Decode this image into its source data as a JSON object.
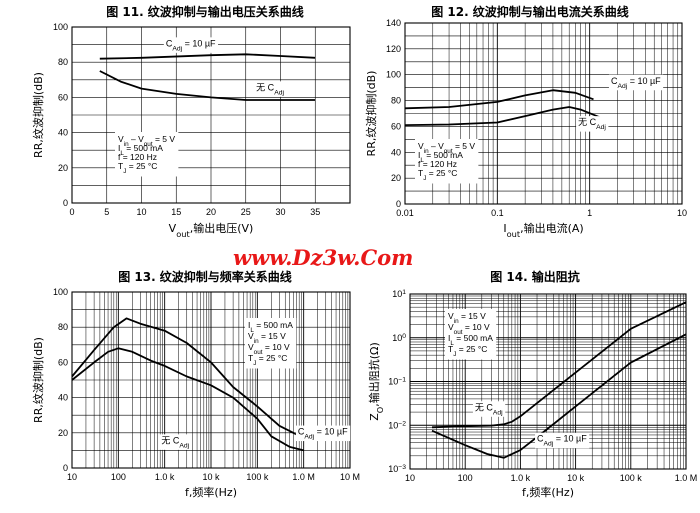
{
  "watermark": "www.Dz3w.Com",
  "chart_data": [
    {
      "type": "line",
      "title": "图 11. 纹波抑制与输出电压关系曲线",
      "ylabel": "RR,纹波抑制(dB)",
      "xlabel_prefix": "V",
      "xlabel_sub": "out",
      "xlabel_suffix": ",输出电压(V)",
      "xscale": "linear",
      "xlim": [
        0,
        40
      ],
      "ylim": [
        0,
        100
      ],
      "xticks": [
        0,
        5,
        10,
        15,
        20,
        25,
        30,
        35
      ],
      "xtick_labels": [
        "0",
        "5",
        "10",
        "15",
        "20",
        "25",
        "30",
        "35"
      ],
      "yticks": [
        0,
        20,
        40,
        60,
        80,
        100
      ],
      "ytick_labels": [
        "0",
        "20",
        "40",
        "60",
        "80",
        "100"
      ],
      "grid": true,
      "series": [
        {
          "name": "CAdj = 10 µF",
          "x": [
            4,
            10,
            20,
            25,
            30,
            35
          ],
          "y": [
            82,
            82.5,
            84,
            84.5,
            83.5,
            82.5
          ]
        },
        {
          "name": "无 CAdj",
          "x": [
            4,
            7,
            10,
            15,
            20,
            25,
            30,
            35
          ],
          "y": [
            75,
            69,
            65,
            62,
            60,
            58.5,
            58.5,
            58.5
          ]
        }
      ],
      "curve_labels": [
        {
          "main": "C",
          "sub": "Adj",
          "tail": " = 10 µF",
          "x": 13.5,
          "y": 89
        },
        {
          "main": "无 C",
          "sub": "Adj",
          "tail": "",
          "x": 26.5,
          "y": 64
        }
      ],
      "conditions": [
        {
          "main": "V",
          "sub": "in",
          "tail": " – V",
          "sub2": "out",
          "tail2": " = 5 V"
        },
        {
          "main": "I",
          "sub": "L",
          "tail": " = 500 mA"
        },
        {
          "main": "f = 120 Hz"
        },
        {
          "main": "T",
          "sub": "J",
          "tail": " = 25 °C"
        }
      ]
    },
    {
      "type": "line",
      "title": "图 12. 纹波抑制与输出电流关系曲线",
      "ylabel": "RR,纹波抑制(dB)",
      "xlabel_prefix": "I",
      "xlabel_sub": "out",
      "xlabel_suffix": ",输出电流(A)",
      "xscale": "log",
      "xlim": [
        0.01,
        10
      ],
      "ylim": [
        0,
        140
      ],
      "xticks": [
        0.01,
        0.1,
        1,
        10
      ],
      "xtick_labels": [
        "0.01",
        "0.1",
        "1",
        "10"
      ],
      "yticks": [
        0,
        20,
        40,
        60,
        80,
        100,
        120,
        140
      ],
      "ytick_labels": [
        "0",
        "20",
        "40",
        "60",
        "80",
        "100",
        "120",
        "140"
      ],
      "grid": true,
      "series": [
        {
          "name": "CAdj = 10 µF",
          "x": [
            0.01,
            0.03,
            0.1,
            0.2,
            0.4,
            0.7,
            1.1
          ],
          "y": [
            74,
            75,
            79,
            84,
            88,
            86,
            81
          ]
        },
        {
          "name": "无 CAdj",
          "x": [
            0.01,
            0.03,
            0.1,
            0.2,
            0.4,
            0.6,
            0.8,
            1.3
          ],
          "y": [
            61,
            61.5,
            63,
            68,
            73,
            75,
            73,
            67
          ]
        }
      ],
      "curve_labels": [
        {
          "main": "C",
          "sub": "Adj",
          "tail": " = 10 µF",
          "x": 1.7,
          "y": 93
        },
        {
          "main": "无 C",
          "sub": "Adj",
          "tail": "",
          "x": 0.75,
          "y": 61
        }
      ],
      "conditions": [
        {
          "main": "V",
          "sub": "in",
          "tail": " – V",
          "sub2": "out",
          "tail2": " = 5 V"
        },
        {
          "main": "I",
          "sub": "L",
          "tail": " = 500 mA"
        },
        {
          "main": "f = 120 Hz"
        },
        {
          "main": "T",
          "sub": "J",
          "tail": " = 25 °C"
        }
      ]
    },
    {
      "type": "line",
      "title": "图 13. 纹波抑制与频率关系曲线",
      "ylabel": "RR,纹波抑制(dB)",
      "xlabel_prefix": "f,频率(Hz)",
      "xlabel_sub": "",
      "xlabel_suffix": "",
      "xscale": "log",
      "xlim": [
        10,
        10000000
      ],
      "ylim": [
        0,
        100
      ],
      "xticks": [
        10,
        100,
        1000,
        10000,
        100000,
        1000000,
        10000000
      ],
      "xtick_labels": [
        "10",
        "100",
        "1.0 k",
        "10 k",
        "100 k",
        "1.0 M",
        "10 M"
      ],
      "yticks": [
        0,
        20,
        40,
        60,
        80,
        100
      ],
      "ytick_labels": [
        "0",
        "20",
        "40",
        "60",
        "80",
        "100"
      ],
      "grid": true,
      "series": [
        {
          "name": "CAdj = 10 µF",
          "x": [
            10,
            30,
            80,
            150,
            300,
            1000,
            3000,
            10000,
            30000,
            100000,
            300000,
            1000000
          ],
          "y": [
            52,
            67,
            80,
            85,
            82,
            78,
            71,
            60,
            46,
            35,
            24,
            17
          ]
        },
        {
          "name": "无 CAdj",
          "x": [
            10,
            30,
            60,
            100,
            200,
            500,
            1000,
            3000,
            10000,
            30000,
            100000,
            200000,
            500000,
            1000000
          ],
          "y": [
            50,
            60,
            66,
            68,
            66,
            61,
            58,
            52,
            47,
            40,
            28,
            18,
            12,
            10
          ]
        }
      ],
      "curve_labels": [
        {
          "main": "C",
          "sub": "Adj",
          "tail": " = 10 µF",
          "x": 750000,
          "y": 19
        },
        {
          "main": "无 C",
          "sub": "Adj",
          "tail": "",
          "x": 850,
          "y": 14
        }
      ],
      "conditions": [
        {
          "main": "I",
          "sub": "L",
          "tail": " = 500 mA"
        },
        {
          "main": "V",
          "sub": "in",
          "tail": " = 15 V"
        },
        {
          "main": "V",
          "sub": "out",
          "tail": " = 10 V"
        },
        {
          "main": "T",
          "sub": "J",
          "tail": " = 25 °C"
        }
      ]
    },
    {
      "type": "line",
      "title": "图 14. 输出阻抗",
      "ylabel": "Z,输出阻抗(Ω)",
      "ylabel_sub": "O",
      "xlabel_prefix": "f,频率(Hz)",
      "xlabel_sub": "",
      "xlabel_suffix": "",
      "xscale": "log",
      "yscale": "log",
      "xlim": [
        10,
        1000000
      ],
      "ylim": [
        0.001,
        10
      ],
      "xticks": [
        10,
        100,
        1000,
        10000,
        100000,
        1000000
      ],
      "xtick_labels": [
        "10",
        "100",
        "1.0 k",
        "10 k",
        "100 k",
        "1.0 M"
      ],
      "yticks": [
        0.001,
        0.01,
        0.1,
        1,
        10
      ],
      "ytick_labels": [
        "10^-3",
        "10^-2",
        "10^-1",
        "10^0",
        "10^1"
      ],
      "grid": true,
      "series": [
        {
          "name": "无 CAdj",
          "x": [
            25,
            100,
            300,
            500,
            700,
            1000,
            3000,
            10000,
            100000,
            1000000
          ],
          "y": [
            0.009,
            0.0095,
            0.0098,
            0.0105,
            0.012,
            0.016,
            0.048,
            0.16,
            1.6,
            6.5
          ]
        },
        {
          "name": "CAdj = 10 µF",
          "x": [
            25,
            100,
            250,
            500,
            1000,
            3000,
            10000,
            100000,
            1000000
          ],
          "y": [
            0.0075,
            0.0035,
            0.0022,
            0.0018,
            0.0027,
            0.008,
            0.027,
            0.27,
            1.2
          ]
        }
      ],
      "curve_labels": [
        {
          "main": "无 C",
          "sub": "Adj",
          "tail": "",
          "x": 150,
          "y": 0.022
        },
        {
          "main": "C",
          "sub": "Adj",
          "tail": " = 10 µF",
          "x": 2000,
          "y": 0.0042
        }
      ],
      "conditions": [
        {
          "main": "V",
          "sub": "in",
          "tail": " = 15 V"
        },
        {
          "main": "V",
          "sub": "out",
          "tail": " = 10 V"
        },
        {
          "main": "I",
          "sub": "L",
          "tail": " = 500 mA"
        },
        {
          "main": "T",
          "sub": "J",
          "tail": " = 25 °C"
        }
      ]
    }
  ]
}
